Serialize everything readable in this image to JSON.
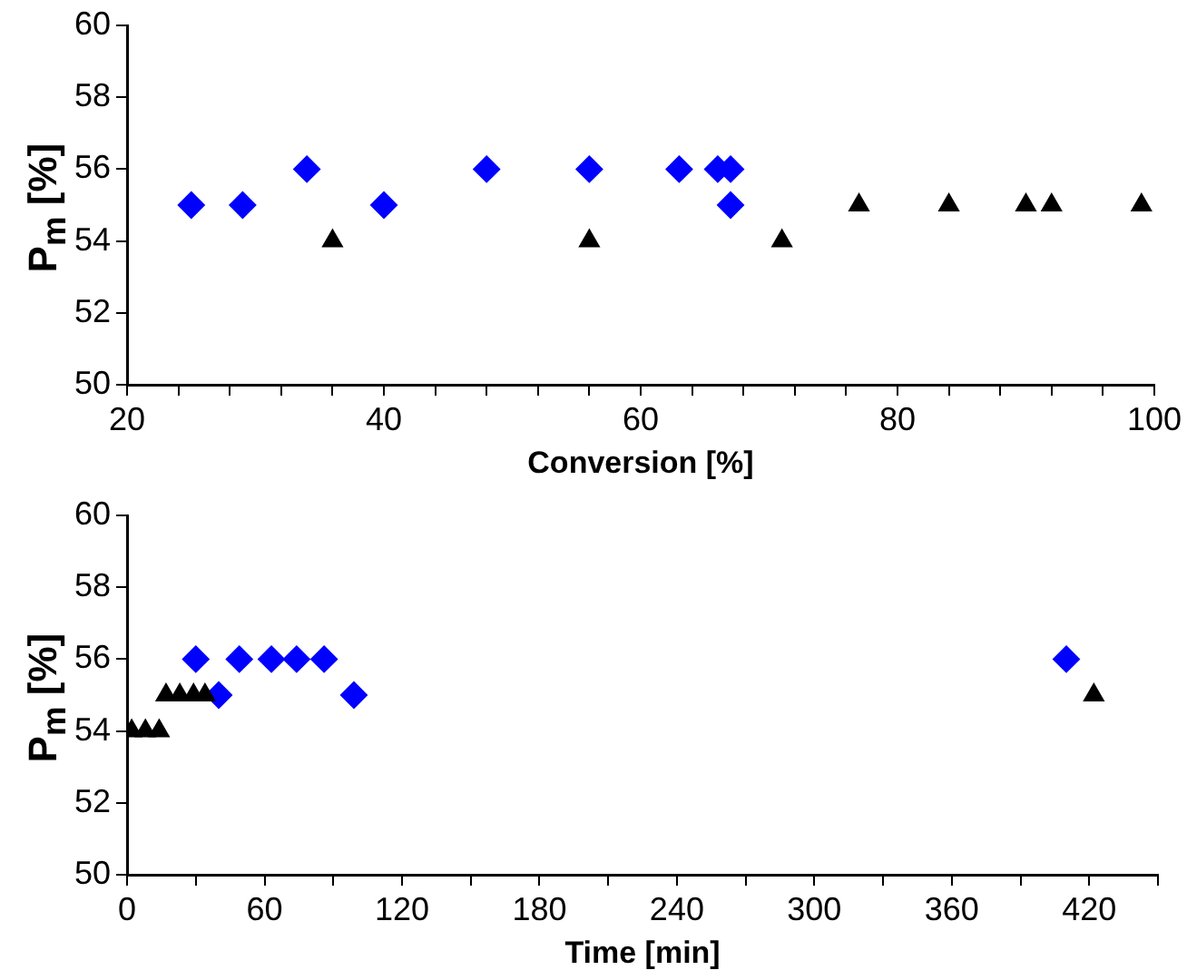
{
  "chart_data": [
    {
      "type": "scatter",
      "xlabel": "Conversion [%]",
      "ylabel": "P$_{m}$ [%]",
      "xlim": [
        20,
        100
      ],
      "xticks": [
        20,
        {
          "value": 24,
          "label": null
        },
        {
          "value": 28,
          "label": null
        },
        {
          "value": 32,
          "label": null
        },
        {
          "value": 36,
          "label": null
        },
        40,
        {
          "value": 44,
          "label": null
        },
        {
          "value": 48,
          "label": null
        },
        {
          "value": 52,
          "label": null
        },
        {
          "value": 56,
          "label": null
        },
        60,
        {
          "value": 64,
          "label": null
        },
        {
          "value": 68,
          "label": null
        },
        {
          "value": 72,
          "label": null
        },
        {
          "value": 76,
          "label": null
        },
        80,
        {
          "value": 84,
          "label": null
        },
        {
          "value": 88,
          "label": null
        },
        {
          "value": 92,
          "label": null
        },
        {
          "value": 96,
          "label": null
        },
        100
      ],
      "ylim": [
        50,
        60
      ],
      "yticks": [
        50,
        52,
        54,
        56,
        58,
        60
      ],
      "grid": false,
      "legend": false,
      "series": [
        {
          "color": "#0000ff",
          "marker": "diamond",
          "x": [
            25,
            29,
            34,
            40,
            48,
            56,
            63,
            66,
            67,
            67
          ],
          "values": [
            55,
            55,
            56,
            55,
            56,
            56,
            56,
            56,
            56,
            55
          ]
        },
        {
          "color": "#000000",
          "marker": "triangle",
          "x": [
            36,
            56,
            71,
            77,
            84,
            90,
            92,
            99
          ],
          "values": [
            54,
            54,
            54,
            55,
            55,
            55,
            55,
            55
          ]
        }
      ]
    },
    {
      "type": "scatter",
      "xlabel": "Time [min]",
      "ylabel": "P$_{m}$ [%]",
      "xlim": [
        0,
        450
      ],
      "xticks": [
        0,
        {
          "value": 30,
          "label": null
        },
        60,
        {
          "value": 90,
          "label": null
        },
        120,
        {
          "value": 150,
          "label": null
        },
        180,
        {
          "value": 210,
          "label": null
        },
        240,
        {
          "value": 270,
          "label": null
        },
        300,
        {
          "value": 330,
          "label": null
        },
        360,
        {
          "value": 390,
          "label": null
        },
        420,
        {
          "value": 450,
          "label": null
        }
      ],
      "ylim": [
        50,
        60
      ],
      "yticks": [
        50,
        52,
        54,
        56,
        58,
        60
      ],
      "grid": false,
      "legend": false,
      "series": [
        {
          "color": "#0000ff",
          "marker": "diamond",
          "x": [
            30,
            40,
            49,
            63,
            74,
            86,
            99,
            410
          ],
          "values": [
            56,
            55,
            56,
            56,
            56,
            56,
            55,
            56
          ]
        },
        {
          "color": "#000000",
          "marker": "triangle",
          "x": [
            2,
            8,
            14,
            17,
            23,
            29,
            34,
            422
          ],
          "values": [
            54,
            54,
            54,
            55,
            55,
            55,
            55,
            55
          ]
        }
      ]
    }
  ]
}
